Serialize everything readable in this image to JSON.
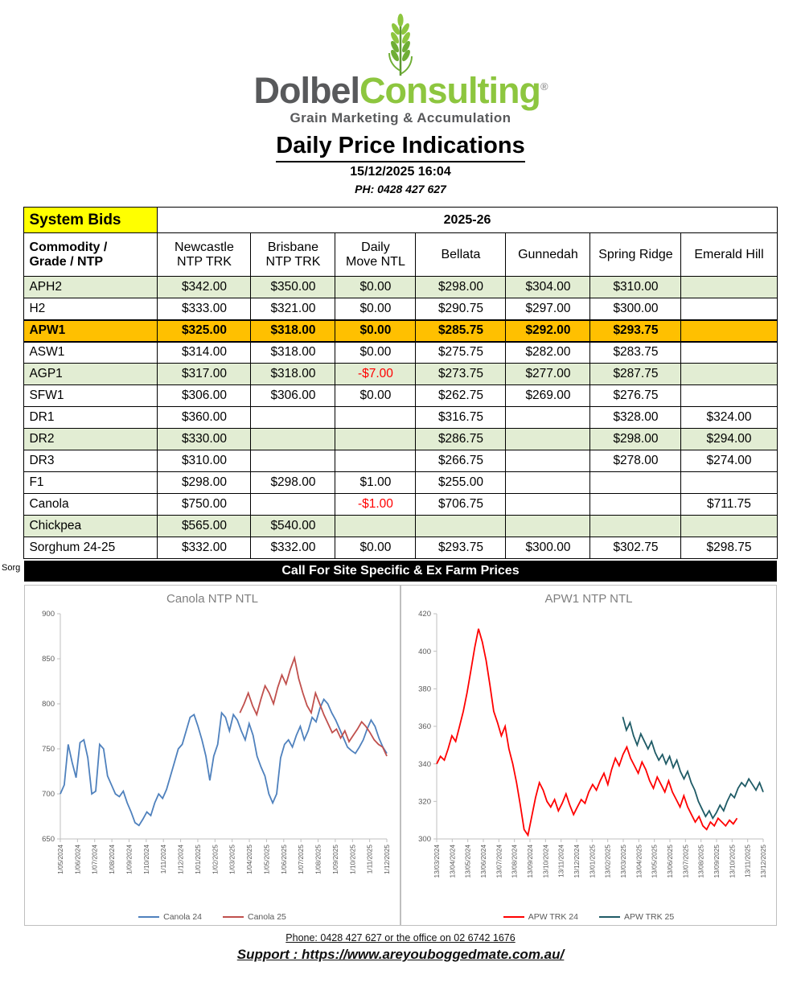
{
  "logo": {
    "name_primary": "Dolbel",
    "name_secondary": "Consulting",
    "registered_mark": "®",
    "tagline": "Grain Marketing & Accumulation"
  },
  "header": {
    "title": "Daily Price Indications",
    "datetime": "15/12/2025 16:04",
    "phone": "PH: 0428 427 627"
  },
  "stray_label": "Sorg",
  "table": {
    "system_bids_label": "System Bids",
    "season_label": "2025-26",
    "columns": [
      "Commodity /\nGrade / NTP",
      "Newcastle\nNTP TRK",
      "Brisbane\nNTP TRK",
      "Daily\nMove NTL",
      "Bellata",
      "Gunnedah",
      "Spring Ridge",
      "Emerald Hill"
    ],
    "rows": [
      {
        "name": "APH2",
        "bg": "green",
        "values": [
          "$342.00",
          "$350.00",
          "$0.00",
          "$298.00",
          "$304.00",
          "$310.00",
          ""
        ]
      },
      {
        "name": "H2",
        "bg": "white",
        "values": [
          "$333.00",
          "$321.00",
          "$0.00",
          "$290.75",
          "$297.00",
          "$300.00",
          ""
        ]
      },
      {
        "name": "APW1",
        "bg": "orange",
        "bold": true,
        "values": [
          "$325.00",
          "$318.00",
          "$0.00",
          "$285.75",
          "$292.00",
          "$293.75",
          ""
        ]
      },
      {
        "name": "ASW1",
        "bg": "white",
        "values": [
          "$314.00",
          "$318.00",
          "$0.00",
          "$275.75",
          "$282.00",
          "$283.75",
          ""
        ]
      },
      {
        "name": "AGP1",
        "bg": "green",
        "red_cols": [
          2
        ],
        "values": [
          "$317.00",
          "$318.00",
          "-$7.00",
          "$273.75",
          "$277.00",
          "$287.75",
          ""
        ]
      },
      {
        "name": "SFW1",
        "bg": "white",
        "values": [
          "$306.00",
          "$306.00",
          "$0.00",
          "$262.75",
          "$269.00",
          "$276.75",
          ""
        ]
      },
      {
        "name": "DR1",
        "bg": "white",
        "values": [
          "$360.00",
          "",
          "",
          "$316.75",
          "",
          "$328.00",
          "$324.00"
        ]
      },
      {
        "name": "DR2",
        "bg": "green",
        "values": [
          "$330.00",
          "",
          "",
          "$286.75",
          "",
          "$298.00",
          "$294.00"
        ]
      },
      {
        "name": "DR3",
        "bg": "white",
        "values": [
          "$310.00",
          "",
          "",
          "$266.75",
          "",
          "$278.00",
          "$274.00"
        ]
      },
      {
        "name": "F1",
        "bg": "white",
        "values": [
          "$298.00",
          "$298.00",
          "$1.00",
          "$255.00",
          "",
          "",
          ""
        ]
      },
      {
        "name": "Canola",
        "bg": "white",
        "red_cols": [
          2
        ],
        "values": [
          "$750.00",
          "",
          "-$1.00",
          "$706.75",
          "",
          "",
          "$711.75"
        ]
      },
      {
        "name": "Chickpea",
        "bg": "green",
        "values": [
          "$565.00",
          "$540.00",
          "",
          "",
          "",
          "",
          ""
        ]
      },
      {
        "name": "Sorghum 24-25",
        "bg": "white",
        "values": [
          "$332.00",
          "$332.00",
          "$0.00",
          "$293.75",
          "$300.00",
          "$302.75",
          "$298.75"
        ]
      }
    ]
  },
  "banner": "Call For Site Specific & Ex Farm Prices",
  "chart_data": [
    {
      "type": "line",
      "title": "Canola NTP NTL",
      "ylim": [
        650,
        900
      ],
      "yticks": [
        650,
        700,
        750,
        800,
        850,
        900
      ],
      "grid": false,
      "legend_position": "bottom",
      "x_labels": [
        "1/05/2024",
        "1/06/2024",
        "1/07/2024",
        "1/08/2024",
        "1/09/2024",
        "1/10/2024",
        "1/11/2024",
        "1/12/2024",
        "1/01/2025",
        "1/02/2025",
        "1/03/2025",
        "1/04/2025",
        "1/05/2025",
        "1/06/2025",
        "1/07/2025",
        "1/08/2025",
        "1/09/2025",
        "1/10/2025",
        "1/11/2025",
        "1/12/2025"
      ],
      "series": [
        {
          "name": "Canola 24",
          "color": "#4f81bd",
          "x_start": 0,
          "x_end": 1,
          "values": [
            700,
            710,
            755,
            735,
            718,
            757,
            760,
            740,
            700,
            703,
            755,
            750,
            720,
            710,
            700,
            697,
            703,
            690,
            680,
            668,
            665,
            672,
            680,
            676,
            690,
            700,
            695,
            705,
            720,
            735,
            750,
            755,
            770,
            785,
            788,
            775,
            760,
            742,
            715,
            742,
            755,
            790,
            785,
            770,
            788,
            782,
            770,
            760,
            778,
            765,
            742,
            730,
            720,
            700,
            690,
            700,
            740,
            755,
            760,
            752,
            765,
            775,
            760,
            770,
            785,
            780,
            795,
            805,
            800,
            790,
            782,
            772,
            762,
            752,
            748,
            745,
            752,
            760,
            772,
            782,
            775,
            762,
            752,
            745
          ]
        },
        {
          "name": "Canola 25",
          "color": "#c0504d",
          "x_start": 0.55,
          "x_end": 1,
          "values": [
            790,
            800,
            812,
            798,
            788,
            805,
            820,
            812,
            800,
            818,
            832,
            822,
            838,
            851,
            828,
            812,
            798,
            790,
            812,
            800,
            788,
            778,
            768,
            772,
            762,
            770,
            758,
            765,
            772,
            780,
            775,
            768,
            760,
            755,
            752,
            742
          ]
        }
      ]
    },
    {
      "type": "line",
      "title": "APW1 NTP NTL",
      "ylim": [
        300,
        420
      ],
      "yticks": [
        300,
        320,
        340,
        360,
        380,
        400,
        420
      ],
      "grid": false,
      "legend_position": "bottom",
      "x_labels": [
        "13/03/2024",
        "13/04/2024",
        "13/05/2024",
        "13/06/2024",
        "13/07/2024",
        "13/08/2024",
        "13/09/2024",
        "13/10/2024",
        "13/11/2024",
        "13/12/2024",
        "13/01/2025",
        "13/02/2025",
        "13/03/2025",
        "13/04/2025",
        "13/05/2025",
        "13/06/2025",
        "13/07/2025",
        "13/08/2025",
        "13/09/2025",
        "13/10/2025",
        "13/11/2025",
        "13/12/2025"
      ],
      "series": [
        {
          "name": "APW TRK 24",
          "color": "#ff0000",
          "x_start": 0,
          "x_end": 0.92,
          "values": [
            340,
            344,
            342,
            348,
            355,
            352,
            360,
            368,
            378,
            390,
            402,
            412,
            405,
            395,
            382,
            368,
            362,
            355,
            360,
            348,
            340,
            330,
            318,
            305,
            302,
            312,
            322,
            330,
            326,
            320,
            317,
            321,
            315,
            319,
            324,
            318,
            313,
            317,
            321,
            319,
            325,
            329,
            326,
            331,
            335,
            329,
            337,
            343,
            339,
            345,
            349,
            343,
            339,
            335,
            341,
            337,
            331,
            327,
            333,
            329,
            325,
            331,
            325,
            321,
            317,
            323,
            317,
            313,
            309,
            312,
            307,
            305,
            309,
            307,
            311,
            309,
            307,
            310,
            308,
            311
          ]
        },
        {
          "name": "APW TRK 25",
          "color": "#1f5b66",
          "x_start": 0.57,
          "x_end": 1,
          "values": [
            365,
            358,
            362,
            355,
            350,
            356,
            352,
            348,
            352,
            346,
            342,
            345,
            340,
            344,
            338,
            342,
            336,
            332,
            336,
            330,
            326,
            320,
            316,
            312,
            315,
            311,
            314,
            318,
            315,
            320,
            324,
            322,
            327,
            330,
            328,
            332,
            329,
            326,
            330,
            325
          ]
        }
      ]
    }
  ],
  "footer": {
    "phone_line": "Phone: 0428 427 627 or the office on 02 6742 1676",
    "support_label": "Support : ",
    "support_url": "https://www.areyouboggedmate.com.au/"
  }
}
